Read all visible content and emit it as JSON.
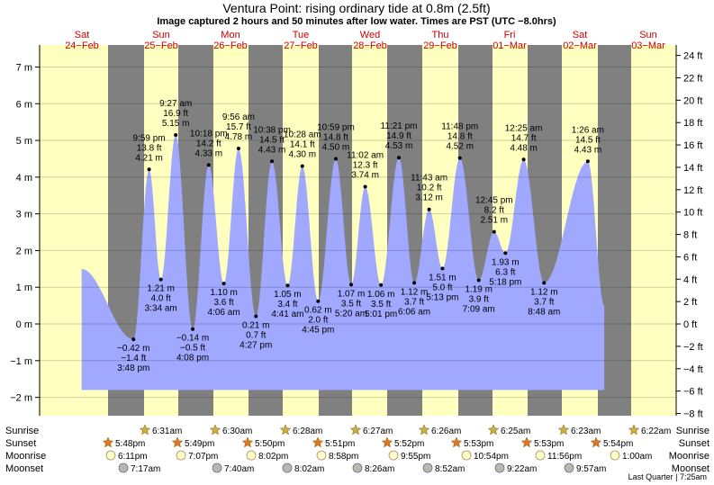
{
  "header": {
    "title": "Ventura Point: rising  ordinary tide at 0.8m (2.5ft)",
    "subtitle": "Image captured 2 hours and 50 minutes after low water. Times are PST (UTC −8.0hrs)"
  },
  "days": [
    {
      "dow": "Sat",
      "date": "24−Feb"
    },
    {
      "dow": "Sun",
      "date": "25−Feb"
    },
    {
      "dow": "Mon",
      "date": "26−Feb"
    },
    {
      "dow": "Tue",
      "date": "27−Feb"
    },
    {
      "dow": "Wed",
      "date": "28−Feb"
    },
    {
      "dow": "Thu",
      "date": "29−Feb"
    },
    {
      "dow": "Fri",
      "date": "01−Mar"
    },
    {
      "dow": "Sat",
      "date": "02−Mar"
    },
    {
      "dow": "Sun",
      "date": "03−Mar"
    }
  ],
  "row_labels": [
    "Sunrise",
    "Sunset",
    "Moonrise",
    "Moonset"
  ],
  "sun_moon": {
    "sunrise": [
      "6:31am",
      "6:30am",
      "6:28am",
      "6:27am",
      "6:26am",
      "6:25am",
      "6:23am",
      "6:22am"
    ],
    "sunset": [
      "5:48pm",
      "5:49pm",
      "5:50pm",
      "5:51pm",
      "5:52pm",
      "5:53pm",
      "5:53pm",
      "5:54pm"
    ],
    "moonrise": [
      "6:11pm",
      "7:07pm",
      "8:02pm",
      "8:58pm",
      "9:55pm",
      "10:54pm",
      "11:56pm",
      "1:00am"
    ],
    "moonset": [
      "7:17am",
      "7:40am",
      "8:02am",
      "8:26am",
      "8:52am",
      "9:22am",
      "9:57am"
    ]
  },
  "footer": "Last Quarter | 7:25am",
  "colors": {
    "day": "#ffffc0",
    "night": "#808080",
    "water": "#a0a8ff",
    "weekend": "#cc0000",
    "sun_icon": "#c8b040",
    "sunset_icon": "#e07820",
    "moon_fill": "#ffffcc",
    "moonset_fill": "#b8b8b0"
  },
  "chart_data": {
    "type": "area",
    "title": "Ventura Point: rising  ordinary tide at 0.8m (2.5ft)",
    "y_left_label_unit": "m",
    "y_right_label_unit": "ft",
    "ylim_m": [
      -2.5,
      7.6
    ],
    "y_ticks_m": [
      -2,
      -1,
      0,
      1,
      2,
      3,
      4,
      5,
      6,
      7
    ],
    "y_ticks_ft": [
      -8,
      -6,
      -4,
      -2,
      0,
      2,
      4,
      6,
      8,
      10,
      12,
      14,
      16,
      18,
      20,
      22,
      24
    ],
    "current_level_m": 0.8,
    "extremes": [
      {
        "time": "3:48 pm",
        "m": "−0.42 m",
        "ft": "−1.4 ft",
        "value": -0.42,
        "kind": "low",
        "x": 0.1475
      },
      {
        "time": "9:59 pm",
        "m": "4.21 m",
        "ft": "13.8 ft",
        "value": 4.21,
        "kind": "high",
        "x": 0.172
      },
      {
        "time": "3:34 am",
        "m": "1.21 m",
        "ft": "4.0 ft",
        "value": 1.21,
        "kind": "low",
        "x": 0.1905
      },
      {
        "time": "9:27 am",
        "m": "5.15 m",
        "ft": "16.9 ft",
        "value": 5.15,
        "kind": "high",
        "x": 0.2138
      },
      {
        "time": "4:08 pm",
        "m": "−0.14 m",
        "ft": "−0.5 ft",
        "value": -0.14,
        "kind": "low",
        "x": 0.2405
      },
      {
        "time": "10:18 pm",
        "m": "4.33 m",
        "ft": "14.2 ft",
        "value": 4.33,
        "kind": "high",
        "x": 0.2656
      },
      {
        "time": "4:06 am",
        "m": "1.10 m",
        "ft": "3.6 ft",
        "value": 1.1,
        "kind": "low",
        "x": 0.2894
      },
      {
        "time": "9:56 am",
        "m": "4.78 m",
        "ft": "15.7 ft",
        "value": 4.78,
        "kind": "high",
        "x": 0.3125
      },
      {
        "time": "4:27 pm",
        "m": "0.21 m",
        "ft": "0.7 ft",
        "value": 0.21,
        "kind": "low",
        "x": 0.3398
      },
      {
        "time": "10:38 pm",
        "m": "4.43 m",
        "ft": "14.5 ft",
        "value": 4.43,
        "kind": "high",
        "x": 0.365
      },
      {
        "time": "4:41 am",
        "m": "1.05 m",
        "ft": "3.4 ft",
        "value": 1.05,
        "kind": "low",
        "x": 0.3896
      },
      {
        "time": "10:28 am",
        "m": "4.30 m",
        "ft": "14.1 ft",
        "value": 4.3,
        "kind": "high",
        "x": 0.4127
      },
      {
        "time": "4:45 pm",
        "m": "0.62 m",
        "ft": "2.0 ft",
        "value": 0.62,
        "kind": "low",
        "x": 0.4375
      },
      {
        "time": "10:59 pm",
        "m": "4.50 m",
        "ft": "14.8 ft",
        "value": 4.5,
        "kind": "high",
        "x": 0.4653
      },
      {
        "time": "5:20 am",
        "m": "1.07 m",
        "ft": "3.5 ft",
        "value": 1.07,
        "kind": "low",
        "x": 0.4894
      },
      {
        "time": "11:02 am",
        "m": "3.74 m",
        "ft": "12.3 ft",
        "value": 3.74,
        "kind": "high",
        "x": 0.5115
      },
      {
        "time": "5:01 pm",
        "m": "1.06 m",
        "ft": "3.5 ft",
        "value": 1.06,
        "kind": "low",
        "x": 0.5363
      },
      {
        "time": "11:21 pm",
        "m": "4.53 m",
        "ft": "14.9 ft",
        "value": 4.53,
        "kind": "high",
        "x": 0.5644
      },
      {
        "time": "6:06 am",
        "m": "1.12 m",
        "ft": "3.7 ft",
        "value": 1.12,
        "kind": "low",
        "x": 0.5885
      },
      {
        "time": "11:43 am",
        "m": "3.12 m",
        "ft": "10.2 ft",
        "value": 3.12,
        "kind": "high",
        "x": 0.6119
      },
      {
        "time": "5:13 pm",
        "m": "1.51 m",
        "ft": "5.0 ft",
        "value": 1.51,
        "kind": "low",
        "x": 0.6329
      },
      {
        "time": "11:48 pm",
        "m": "4.52 m",
        "ft": "14.8 ft",
        "value": 4.52,
        "kind": "high",
        "x": 0.6602
      },
      {
        "time": "7:09 am",
        "m": "1.19 m",
        "ft": "3.9 ft",
        "value": 1.19,
        "kind": "low",
        "x": 0.6898
      },
      {
        "time": "12:45 pm",
        "m": "2.51 m",
        "ft": "8.2 ft",
        "value": 2.51,
        "kind": "high",
        "x": 0.714
      },
      {
        "time": "5:18 pm",
        "m": "1.93 m",
        "ft": "6.3 ft",
        "value": 1.93,
        "kind": "low",
        "x": 0.7317
      },
      {
        "time": "12:25 am",
        "m": "4.48 m",
        "ft": "14.7 ft",
        "value": 4.48,
        "kind": "high",
        "x": 0.7604
      },
      {
        "time": "8:48 am",
        "m": "1.12 m",
        "ft": "3.7 ft",
        "value": 1.12,
        "kind": "low",
        "x": 0.7925
      },
      {
        "time": "1:26 am",
        "m": "4.43 m",
        "ft": "14.5 ft",
        "value": 4.43,
        "kind": "high",
        "x": 0.8612
      }
    ]
  }
}
